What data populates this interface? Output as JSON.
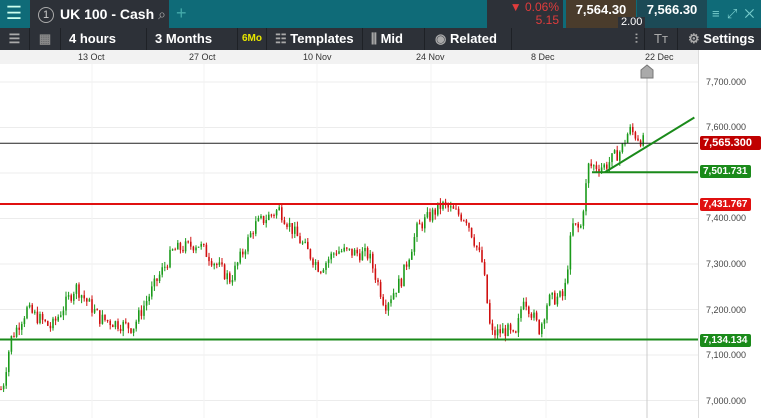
{
  "header": {
    "menu_icon": "hamburger-icon",
    "tab_number": "1",
    "instrument": "UK 100 - Cash",
    "change_pct": "▼ 0.06%",
    "change_pts": "5.15",
    "sell": "7,564.30",
    "buy": "7,566.30",
    "spread": "2.00",
    "add_tab": "+"
  },
  "toolbar": {
    "interval": "4 hours",
    "range": "3 Months",
    "range_badge": "6Mo",
    "templates": "Templates",
    "price_mode": "Mid",
    "related": "Related",
    "settings": "Settings",
    "font_icon": "Tт"
  },
  "chart_data": {
    "type": "candlestick",
    "x_ticks": [
      "13 Oct",
      "27 Oct",
      "10 Nov",
      "24 Nov",
      "8 Dec",
      "22 Dec"
    ],
    "y_ticks": [
      "7,700.000",
      "7,600.000",
      "7,400.000",
      "7,300.000",
      "7,200.000",
      "7,100.000",
      "7,000.000"
    ],
    "ylim": [
      6995,
      7730
    ],
    "approx_path": [
      [
        "2023-10-02",
        7025
      ],
      [
        "2023-10-03",
        7134
      ],
      [
        "2023-10-05",
        7200
      ],
      [
        "2023-10-08",
        7160
      ],
      [
        "2023-10-11",
        7250
      ],
      [
        "2023-10-14",
        7180
      ],
      [
        "2023-10-18",
        7160
      ],
      [
        "2023-10-21",
        7265
      ],
      [
        "2023-10-23",
        7330
      ],
      [
        "2023-10-26",
        7345
      ],
      [
        "2023-10-30",
        7265
      ],
      [
        "2023-11-02",
        7385
      ],
      [
        "2023-11-05",
        7420
      ],
      [
        "2023-11-07",
        7365
      ],
      [
        "2023-11-10",
        7290
      ],
      [
        "2023-11-12",
        7330
      ],
      [
        "2023-11-16",
        7320
      ],
      [
        "2023-11-18",
        7210
      ],
      [
        "2023-11-20",
        7265
      ],
      [
        "2023-11-22",
        7380
      ],
      [
        "2023-11-25",
        7430
      ],
      [
        "2023-11-28",
        7400
      ],
      [
        "2023-11-30",
        7300
      ],
      [
        "2023-12-01",
        7145
      ],
      [
        "2023-12-03",
        7155
      ],
      [
        "2023-12-04",
        7134
      ],
      [
        "2023-12-05",
        7230
      ],
      [
        "2023-12-07",
        7155
      ],
      [
        "2023-12-08",
        7220
      ],
      [
        "2023-12-10",
        7230
      ],
      [
        "2023-12-11",
        7385
      ],
      [
        "2023-12-12",
        7375
      ],
      [
        "2023-12-13",
        7515
      ],
      [
        "2023-12-15",
        7515
      ],
      [
        "2023-12-17",
        7550
      ],
      [
        "2023-12-18",
        7595
      ],
      [
        "2023-12-20",
        7565
      ]
    ],
    "current_price": {
      "label": "7,565.300",
      "color": "#c00000"
    },
    "levels": [
      {
        "label": "7,501.731",
        "value": 7501.731,
        "color": "#1a8a1a"
      },
      {
        "label": "7,431.767",
        "value": 7431.767,
        "color": "#e01010"
      },
      {
        "label": "7,134.134",
        "value": 7134.134,
        "color": "#1a8a1a"
      }
    ],
    "trendline": {
      "from": [
        "2023-12-15",
        7501.7
      ],
      "to": [
        "2023-12-26",
        7622
      ],
      "color": "#1a8a1a"
    },
    "up_color": "#1a9a1a",
    "down_color": "#d01010"
  }
}
